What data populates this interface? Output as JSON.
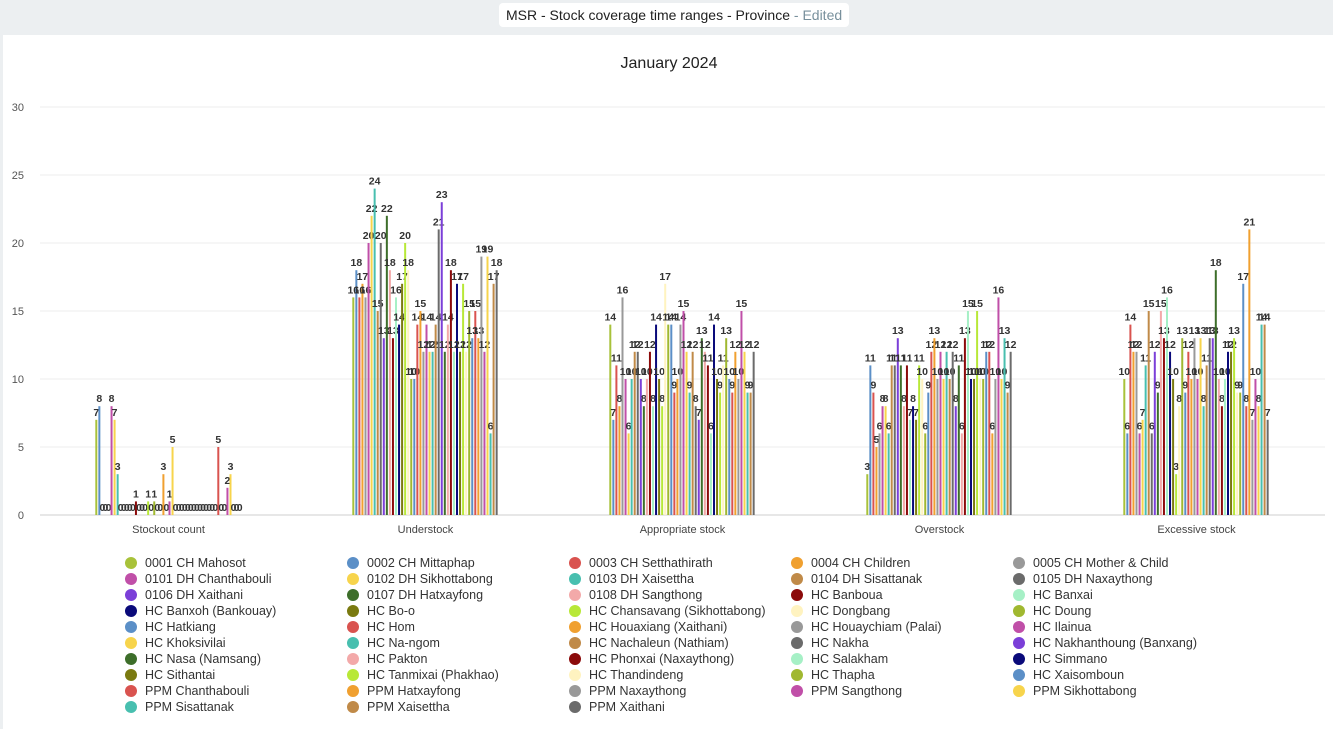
{
  "header": {
    "title": "MSR - Stock coverage time ranges - Province",
    "status": "- Edited"
  },
  "chart_data": {
    "type": "bar",
    "title": "January 2024",
    "xlabel": "",
    "ylabel": "",
    "ylim": [
      0,
      30
    ],
    "yticks": [
      0,
      5,
      10,
      15,
      20,
      25,
      30
    ],
    "grid": true,
    "legend": "bottom",
    "categories": [
      "Stockout count",
      "Understock",
      "Appropriate stock",
      "Overstock",
      "Excessive stock"
    ],
    "series": [
      {
        "name": "0001 CH Mahosot",
        "color": "#a8c23a",
        "values": [
          7,
          16,
          14,
          3,
          10
        ]
      },
      {
        "name": "0002 CH Mittaphap",
        "color": "#5b8fc7",
        "values": [
          8,
          18,
          7,
          11,
          6
        ]
      },
      {
        "name": "0003 CH Setthathirath",
        "color": "#d9534f",
        "values": [
          0,
          16,
          11,
          9,
          14
        ]
      },
      {
        "name": "0004 CH Children",
        "color": "#f0a030",
        "values": [
          0,
          17,
          8,
          5,
          12
        ]
      },
      {
        "name": "0005 CH Mother & Child",
        "color": "#999999",
        "values": [
          0,
          16,
          16,
          6,
          12
        ]
      },
      {
        "name": "0101 DH Chanthabouli",
        "color": "#c04fa8",
        "values": [
          8,
          20,
          10,
          8,
          6
        ]
      },
      {
        "name": "0102 DH Sikhottabong",
        "color": "#f7d44c",
        "values": [
          7,
          22,
          6,
          8,
          7
        ]
      },
      {
        "name": "0103 DH Xaisettha",
        "color": "#48bfaf",
        "values": [
          3,
          24,
          10,
          6,
          11
        ]
      },
      {
        "name": "0104 DH Sisattanak",
        "color": "#c08a48",
        "values": [
          0,
          15,
          12,
          11,
          15
        ]
      },
      {
        "name": "0105 DH Naxaythong",
        "color": "#6b6b6b",
        "values": [
          0,
          20,
          12,
          11,
          6
        ]
      },
      {
        "name": "0106 DH Xaithani",
        "color": "#7b3fd8",
        "values": [
          0,
          13,
          10,
          13,
          12
        ]
      },
      {
        "name": "0107 DH Hatxayfong",
        "color": "#3d6e2a",
        "values": [
          0,
          22,
          8,
          11,
          9
        ]
      },
      {
        "name": "0108 DH Sangthong",
        "color": "#f3a9a9",
        "values": [
          0,
          18,
          10,
          8,
          15
        ]
      },
      {
        "name": "HC Banboua",
        "color": "#8b0a0a",
        "values": [
          1,
          13,
          12,
          11,
          13
        ]
      },
      {
        "name": "HC Banxai",
        "color": "#a6f0c6",
        "values": [
          0,
          16,
          8,
          7,
          16
        ]
      },
      {
        "name": "HC Banxoh (Bankouay)",
        "color": "#0a0a7a",
        "values": [
          0,
          14,
          14,
          8,
          12
        ]
      },
      {
        "name": "HC Bo-o",
        "color": "#7a7a10",
        "values": [
          0,
          17,
          10,
          7,
          10
        ]
      },
      {
        "name": "HC Chansavang (Sikhottabong)",
        "color": "#b8e838",
        "values": [
          1,
          20,
          8,
          11,
          3
        ]
      },
      {
        "name": "HC Dongbang",
        "color": "#fff3c0",
        "values": [
          0,
          18,
          17,
          10,
          8
        ]
      },
      {
        "name": "HC Doung",
        "color": "#a0b830",
        "values": [
          1,
          10,
          14,
          6,
          13
        ]
      },
      {
        "name": "HC Hatkiang",
        "color": "#5b8fc7",
        "values": [
          0,
          10,
          14,
          9,
          9
        ]
      },
      {
        "name": "HC Hom",
        "color": "#d9534f",
        "values": [
          0,
          14,
          9,
          12,
          12
        ]
      },
      {
        "name": "HC Houaxiang (Xaithani)",
        "color": "#f0a030",
        "values": [
          3,
          15,
          10,
          13,
          10
        ]
      },
      {
        "name": "HC Houaychiam (Palai)",
        "color": "#999999",
        "values": [
          0,
          12,
          14,
          10,
          13
        ]
      },
      {
        "name": "HC Ilainua",
        "color": "#c04fa8",
        "values": [
          1,
          14,
          15,
          12,
          10
        ]
      },
      {
        "name": "HC Khoksivilai",
        "color": "#f7d44c",
        "values": [
          5,
          12,
          12,
          10,
          13
        ]
      },
      {
        "name": "HC Na-ngom",
        "color": "#48bfaf",
        "values": [
          0,
          12,
          9,
          12,
          8
        ]
      },
      {
        "name": "HC Nachaleun (Nathiam)",
        "color": "#c08a48",
        "values": [
          0,
          14,
          12,
          10,
          11
        ]
      },
      {
        "name": "HC Nakha",
        "color": "#6b6b6b",
        "values": [
          0,
          21,
          8,
          12,
          13
        ]
      },
      {
        "name": "HC Nakhanthoung (Banxang)",
        "color": "#7b3fd8",
        "values": [
          0,
          23,
          7,
          8,
          13
        ]
      },
      {
        "name": "HC Nasa (Namsang)",
        "color": "#3d6e2a",
        "values": [
          0,
          12,
          13,
          11,
          18
        ]
      },
      {
        "name": "HC Pakton",
        "color": "#f3a9a9",
        "values": [
          0,
          14,
          12,
          6,
          10
        ]
      },
      {
        "name": "HC Phonxai (Naxaythong)",
        "color": "#8b0a0a",
        "values": [
          0,
          18,
          11,
          13,
          8
        ]
      },
      {
        "name": "HC Salakham",
        "color": "#a6f0c6",
        "values": [
          0,
          12,
          6,
          15,
          10
        ]
      },
      {
        "name": "HC Simmano",
        "color": "#0a0a7a",
        "values": [
          0,
          17,
          14,
          10,
          12
        ]
      },
      {
        "name": "HC Sithantai",
        "color": "#7a7a10",
        "values": [
          0,
          12,
          10,
          10,
          12
        ]
      },
      {
        "name": "HC Tanmixai (Phakhao)",
        "color": "#b8e838",
        "values": [
          0,
          17,
          9,
          15,
          13
        ]
      },
      {
        "name": "HC Thandindeng",
        "color": "#fff3c0",
        "values": [
          0,
          12,
          11,
          10,
          9
        ]
      },
      {
        "name": "HC Thapha",
        "color": "#a0b830",
        "values": [
          0,
          15,
          13,
          10,
          9
        ]
      },
      {
        "name": "HC Xaisomboun",
        "color": "#5b8fc7",
        "values": [
          0,
          13,
          10,
          12,
          17
        ]
      },
      {
        "name": "PPM Chanthabouli",
        "color": "#d9534f",
        "values": [
          5,
          15,
          9,
          12,
          8
        ]
      },
      {
        "name": "PPM Hatxayfong",
        "color": "#f0a030",
        "values": [
          0,
          13,
          12,
          6,
          21
        ]
      },
      {
        "name": "PPM Naxaythong",
        "color": "#999999",
        "values": [
          0,
          19,
          10,
          10,
          7
        ]
      },
      {
        "name": "PPM Sangthong",
        "color": "#c04fa8",
        "values": [
          2,
          12,
          15,
          16,
          10
        ]
      },
      {
        "name": "PPM Sikhottabong",
        "color": "#f7d44c",
        "values": [
          3,
          19,
          12,
          10,
          8
        ]
      },
      {
        "name": "PPM Sisattanak",
        "color": "#48bfaf",
        "values": [
          0,
          6,
          9,
          13,
          14
        ]
      },
      {
        "name": "PPM Xaisettha",
        "color": "#c08a48",
        "values": [
          0,
          17,
          9,
          9,
          14
        ]
      },
      {
        "name": "PPM Xaithani",
        "color": "#6b6b6b",
        "values": [
          0,
          18,
          12,
          12,
          7
        ]
      }
    ]
  }
}
